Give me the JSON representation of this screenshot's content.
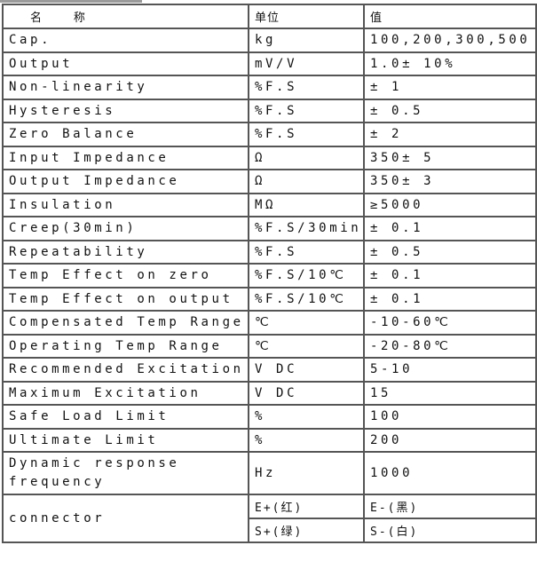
{
  "header": {
    "name": "名 称",
    "unit": "单位",
    "value": "值"
  },
  "rows": [
    {
      "name": "Cap.",
      "unit": "kg",
      "value": "100,200,300,500"
    },
    {
      "name": "Output",
      "unit": "mV/V",
      "value": "1.0± 10%"
    },
    {
      "name": "Non-linearity",
      "unit": "%F.S",
      "value": "± 1"
    },
    {
      "name": "Hysteresis",
      "unit": "%F.S",
      "value": "± 0.5"
    },
    {
      "name": "Zero Balance",
      "unit": "%F.S",
      "value": "± 2"
    },
    {
      "name": "Input Impedance",
      "unit": "Ω",
      "value": "350± 5"
    },
    {
      "name": "Output  Impedance",
      "unit": "Ω",
      "value": "350± 3"
    },
    {
      "name": "Insulation",
      "unit": "MΩ",
      "value": "≥5000"
    },
    {
      "name": "Creep(30min)",
      "unit": "%F.S/30min",
      "value": "± 0.1"
    },
    {
      "name": "Repeatability",
      "unit": "%F.S",
      "value": "± 0.5"
    },
    {
      "name": "Temp Effect on zero",
      "unit": "%F.S/10℃",
      "value": "± 0.1"
    },
    {
      "name": "Temp Effect on output",
      "unit": "%F.S/10℃",
      "value": "± 0.1"
    },
    {
      "name": "Compensated Temp Range",
      "unit": "℃",
      "value": "-10-60℃"
    },
    {
      "name": "Operating Temp Range",
      "unit": "℃",
      "value": "-20-80℃"
    },
    {
      "name": "Recommended Excitation",
      "unit": "V DC",
      "value": "5-10"
    },
    {
      "name": "Maximum Excitation",
      "unit": "V DC",
      "value": "15"
    },
    {
      "name": "Safe Load Limit",
      "unit": "%",
      "value": "100"
    },
    {
      "name": "Ultimate Limit",
      "unit": "%",
      "value": "200"
    }
  ],
  "dynamic": {
    "name": "Dynamic response frequency",
    "unit": "Hz",
    "value": "1000"
  },
  "connector": {
    "name": "connector",
    "pairs": [
      [
        "E+(红)",
        "E-(黑)"
      ],
      [
        "S+(绿)",
        "S-(白)"
      ]
    ]
  }
}
